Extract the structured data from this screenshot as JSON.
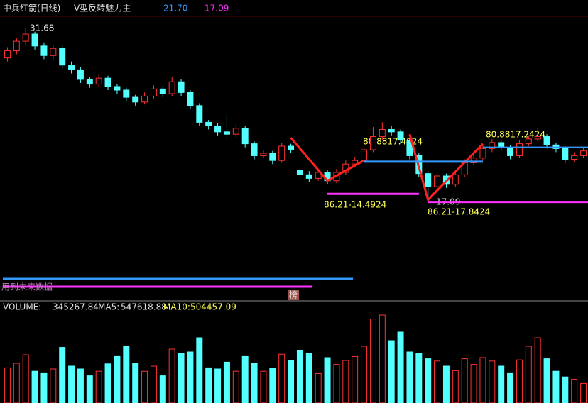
{
  "chart_data": {
    "type": "candlestick",
    "title": "中兵红箭(日线)",
    "indicator": "V型反转魅力主",
    "levels": [
      {
        "value": 21.7,
        "label": "21.70",
        "color": "#3399ff",
        "from": 52
      },
      {
        "value": 17.09,
        "color": "#ff33ff",
        "from": 46
      }
    ],
    "up_color": "#ff3232",
    "down_color": "#54ffff",
    "ylim": [
      9.66,
      32.57
    ],
    "candles": [
      [
        29.2,
        30.1,
        28.9,
        29.8
      ],
      [
        29.8,
        30.9,
        29.5,
        30.6
      ],
      [
        30.6,
        31.68,
        30.3,
        31.2
      ],
      [
        31.2,
        31.4,
        29.9,
        30.2
      ],
      [
        30.2,
        30.5,
        29.1,
        29.4
      ],
      [
        29.4,
        30.3,
        29.1,
        30.0
      ],
      [
        30.0,
        30.2,
        28.3,
        28.6
      ],
      [
        28.6,
        28.9,
        27.9,
        28.2
      ],
      [
        28.2,
        28.4,
        27.1,
        27.4
      ],
      [
        27.4,
        27.6,
        26.7,
        27.0
      ],
      [
        27.0,
        27.8,
        26.8,
        27.5
      ],
      [
        27.5,
        27.7,
        26.5,
        26.8
      ],
      [
        26.8,
        27.0,
        26.2,
        26.5
      ],
      [
        26.5,
        26.7,
        25.6,
        25.9
      ],
      [
        25.9,
        26.1,
        25.2,
        25.5
      ],
      [
        25.5,
        26.3,
        25.3,
        26.0
      ],
      [
        26.0,
        26.9,
        25.8,
        26.6
      ],
      [
        26.6,
        26.8,
        25.9,
        26.2
      ],
      [
        26.2,
        27.6,
        26.0,
        27.2
      ],
      [
        27.2,
        27.4,
        26.0,
        26.3
      ],
      [
        26.3,
        26.5,
        24.9,
        25.2
      ],
      [
        25.2,
        25.4,
        23.5,
        23.8
      ],
      [
        23.8,
        24.0,
        23.2,
        23.5
      ],
      [
        23.5,
        23.7,
        22.7,
        23.0
      ],
      [
        23.0,
        24.5,
        22.5,
        22.8
      ],
      [
        22.8,
        23.6,
        22.5,
        23.3
      ],
      [
        23.3,
        23.5,
        21.7,
        22.0
      ],
      [
        22.0,
        22.2,
        20.7,
        21.0
      ],
      [
        21.0,
        21.5,
        20.8,
        21.2
      ],
      [
        21.2,
        21.4,
        20.3,
        20.6
      ],
      [
        20.6,
        22.1,
        20.4,
        21.8
      ],
      [
        21.8,
        22.0,
        21.2,
        21.5
      ],
      [
        19.8,
        20.0,
        19.1,
        19.4
      ],
      [
        19.4,
        19.7,
        18.8,
        19.1
      ],
      [
        19.1,
        19.9,
        18.9,
        19.6
      ],
      [
        19.6,
        19.8,
        18.6,
        18.9
      ],
      [
        18.9,
        19.9,
        18.7,
        19.6
      ],
      [
        19.6,
        20.6,
        19.4,
        20.3
      ],
      [
        20.3,
        20.9,
        20.0,
        20.6
      ],
      [
        20.6,
        21.8,
        20.4,
        21.5
      ],
      [
        21.5,
        23.4,
        21.3,
        22.6
      ],
      [
        22.6,
        23.8,
        22.3,
        23.2
      ],
      [
        23.2,
        23.5,
        22.7,
        23.0
      ],
      [
        23.0,
        23.2,
        22.0,
        22.3
      ],
      [
        22.3,
        22.5,
        20.7,
        21.0
      ],
      [
        21.0,
        21.2,
        19.2,
        19.5
      ],
      [
        19.5,
        19.7,
        17.09,
        18.4
      ],
      [
        18.4,
        19.6,
        18.2,
        19.3
      ],
      [
        19.3,
        19.5,
        18.3,
        18.6
      ],
      [
        18.6,
        19.7,
        18.4,
        19.4
      ],
      [
        19.4,
        20.7,
        19.2,
        20.4
      ],
      [
        20.4,
        21.1,
        20.2,
        20.8
      ],
      [
        20.8,
        21.9,
        20.6,
        21.6
      ],
      [
        21.6,
        22.4,
        21.3,
        22.1
      ],
      [
        22.1,
        22.3,
        21.4,
        21.7
      ],
      [
        21.7,
        21.9,
        20.7,
        21.0
      ],
      [
        21.0,
        22.3,
        20.8,
        22.0
      ],
      [
        22.0,
        22.7,
        21.8,
        22.4
      ],
      [
        22.4,
        23.3,
        22.2,
        22.6
      ],
      [
        22.6,
        22.8,
        21.6,
        21.9
      ],
      [
        21.9,
        22.1,
        21.3,
        21.6
      ],
      [
        21.6,
        21.8,
        20.4,
        20.7
      ],
      [
        20.7,
        21.3,
        20.5,
        21.0
      ],
      [
        21.0,
        21.7,
        20.8,
        21.4
      ]
    ],
    "overlays": [
      {
        "color": "#ff2020",
        "x": [
          31,
          35,
          39
        ],
        "y": [
          22.5,
          18.9,
          20.6
        ]
      },
      {
        "color": "#ff2020",
        "x": [
          44,
          46,
          52
        ],
        "y": [
          22.8,
          17.3,
          22.0
        ]
      },
      {
        "color": "#3399ff",
        "x": [
          39,
          52
        ],
        "y": [
          20.5,
          20.5
        ]
      },
      {
        "color": "#ff33ff",
        "x": [
          35,
          45
        ],
        "y": [
          17.8,
          17.8
        ]
      }
    ],
    "annotations": [
      "86.21-14.4924",
      "86.21-17.8424",
      "80.8817.4924",
      "80.8817.2424"
    ],
    "notes": [
      "用到未来数据",
      "榜"
    ],
    "volume_label": "VOLUME:",
    "ma5_label": "MA5:",
    "ma5": 547618.88,
    "ma10_label": "MA10:",
    "ma10": 504457.09,
    "vlim": [
      0,
      1600000
    ],
    "volume": [
      620000,
      700000,
      850000,
      560000,
      520000,
      600000,
      980000,
      650000,
      600000,
      480000,
      560000,
      690000,
      820000,
      1000000,
      700000,
      560000,
      650000,
      480000,
      950000,
      880000,
      900000,
      1150000,
      620000,
      600000,
      720000,
      560000,
      820000,
      700000,
      560000,
      610000,
      860000,
      750000,
      930000,
      880000,
      520000,
      800000,
      680000,
      750000,
      820000,
      1000000,
      1480000,
      1550000,
      1100000,
      1250000,
      900000,
      880000,
      780000,
      740000,
      650000,
      570000,
      780000,
      680000,
      800000,
      740000,
      650000,
      520000,
      760000,
      1000000,
      1150000,
      780000,
      560000,
      460000,
      420000,
      345267.84
    ]
  }
}
